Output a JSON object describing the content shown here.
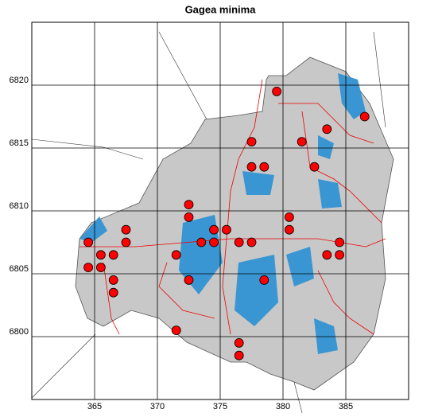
{
  "chart_data": {
    "type": "scatter",
    "title": "Gagea minima",
    "color": "#ff0000",
    "grid": true,
    "xlim": [
      360,
      390
    ],
    "ylim": [
      6795,
      6825
    ],
    "xticks": [
      365,
      370,
      375,
      380,
      385
    ],
    "yticks": [
      6800,
      6805,
      6810,
      6815,
      6820
    ],
    "x": [
      379.5,
      386.5,
      383.5,
      377.5,
      381.5,
      377.5,
      378.5,
      382.5,
      372.5,
      372.5,
      380.5,
      380.5,
      367.5,
      374.5,
      375.5,
      364.5,
      367.5,
      373.5,
      374.5,
      376.5,
      377.5,
      384.5,
      365.5,
      366.5,
      371.5,
      383.5,
      384.5,
      364.5,
      365.5,
      366.5,
      372.5,
      378.5,
      366.5,
      371.5,
      376.5,
      376.5
    ],
    "values": [
      6819.5,
      6817.5,
      6816.5,
      6815.5,
      6815.5,
      6813.5,
      6813.5,
      6813.5,
      6810.5,
      6809.5,
      6809.5,
      6808.5,
      6808.5,
      6808.5,
      6808.5,
      6807.5,
      6807.5,
      6807.5,
      6807.5,
      6807.5,
      6807.5,
      6807.5,
      6806.5,
      6806.5,
      6806.5,
      6806.5,
      6806.5,
      6805.5,
      6805.5,
      6804.5,
      6804.5,
      6804.5,
      6803.5,
      6800.5,
      6799.5,
      6798.5
    ]
  }
}
